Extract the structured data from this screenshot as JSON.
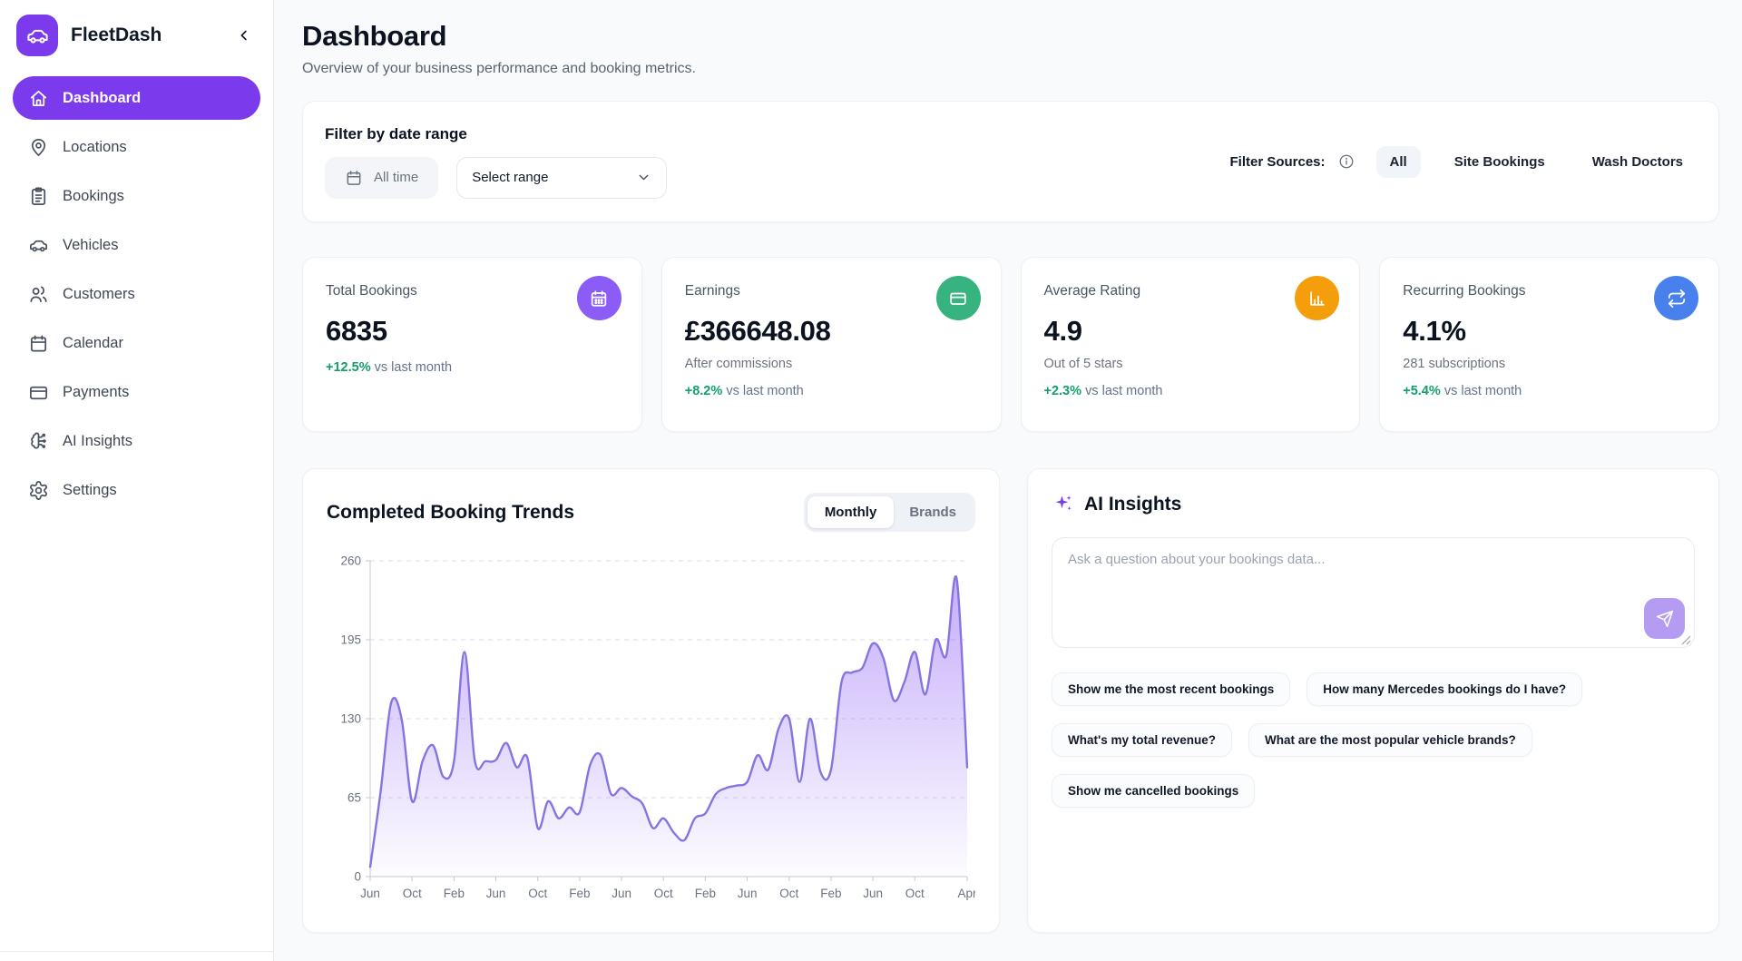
{
  "app": {
    "name": "FleetDash"
  },
  "colors": {
    "accent": "#7c3aed",
    "positive_delta": "#10a06a",
    "chart_line": "#8674e1",
    "stat_icon_colors": [
      "#8b5cf6",
      "#36b37e",
      "#f59e0b",
      "#4880ee"
    ]
  },
  "sidebar": {
    "items": [
      {
        "label": "Dashboard",
        "icon": "home-icon",
        "active": true
      },
      {
        "label": "Locations",
        "icon": "map-pin-icon",
        "active": false
      },
      {
        "label": "Bookings",
        "icon": "clipboard-icon",
        "active": false
      },
      {
        "label": "Vehicles",
        "icon": "car-icon",
        "active": false
      },
      {
        "label": "Customers",
        "icon": "users-icon",
        "active": false
      },
      {
        "label": "Calendar",
        "icon": "calendar-icon",
        "active": false
      },
      {
        "label": "Payments",
        "icon": "credit-card-icon",
        "active": false
      },
      {
        "label": "AI Insights",
        "icon": "brain-icon",
        "active": false
      },
      {
        "label": "Settings",
        "icon": "gear-icon",
        "active": false
      }
    ]
  },
  "header": {
    "title": "Dashboard",
    "subtitle": "Overview of your business performance and booking metrics."
  },
  "filter": {
    "title": "Filter by date range",
    "all_time_label": "All time",
    "select_range_label": "Select range",
    "sources_label": "Filter Sources:",
    "sources": [
      {
        "label": "All",
        "active": true
      },
      {
        "label": "Site Bookings",
        "active": false
      },
      {
        "label": "Wash Doctors",
        "active": false
      }
    ]
  },
  "stats": [
    {
      "label": "Total Bookings",
      "value": "6835",
      "subtext": "",
      "delta": "+12.5%",
      "delta_note": "vs last month",
      "icon": "calendar-check-icon",
      "icon_color": "#8b5cf6"
    },
    {
      "label": "Earnings",
      "value": "£366648.08",
      "subtext": "After commissions",
      "delta": "+8.2%",
      "delta_note": "vs last month",
      "icon": "credit-card-icon",
      "icon_color": "#36b37e"
    },
    {
      "label": "Average Rating",
      "value": "4.9",
      "subtext": "Out of 5 stars",
      "delta": "+2.3%",
      "delta_note": "vs last month",
      "icon": "bar-chart-icon",
      "icon_color": "#f59e0b"
    },
    {
      "label": "Recurring Bookings",
      "value": "4.1%",
      "subtext": "281 subscriptions",
      "delta": "+5.4%",
      "delta_note": "vs last month",
      "icon": "repeat-icon",
      "icon_color": "#4880ee"
    }
  ],
  "trends": {
    "title": "Completed Booking Trends",
    "tabs": [
      {
        "label": "Monthly",
        "active": true
      },
      {
        "label": "Brands",
        "active": false
      }
    ]
  },
  "chart_data": {
    "type": "area",
    "title": "Completed Booking Trends",
    "x_unit": "month",
    "values": [
      8,
      70,
      143,
      130,
      62,
      95,
      108,
      82,
      95,
      185,
      95,
      95,
      96,
      110,
      90,
      98,
      40,
      62,
      48,
      57,
      53,
      92,
      100,
      68,
      73,
      66,
      60,
      40,
      48,
      36,
      30,
      48,
      52,
      68,
      73,
      75,
      78,
      100,
      88,
      122,
      130,
      78,
      130,
      86,
      88,
      160,
      168,
      172,
      192,
      180,
      145,
      160,
      185,
      150,
      195,
      182,
      245,
      90
    ],
    "x_tick_indices": [
      0,
      4,
      8,
      12,
      16,
      20,
      24,
      28,
      32,
      36,
      40,
      44,
      48,
      52,
      57
    ],
    "x_tick_labels": [
      "Jun",
      "Oct",
      "Feb",
      "Jun",
      "Oct",
      "Feb",
      "Jun",
      "Oct",
      "Feb",
      "Jun",
      "Oct",
      "Feb",
      "Jun",
      "Oct",
      "Apr"
    ],
    "y_ticks": [
      0,
      65,
      130,
      195,
      260
    ],
    "ylim": [
      0,
      260
    ],
    "grid": "dashed-horizontal",
    "line_color": "#8674e1",
    "fill_from": "rgba(139,92,246,0.50)",
    "fill_to": "rgba(139,92,246,0.02)"
  },
  "ai": {
    "title": "AI Insights",
    "placeholder": "Ask a question about your bookings data...",
    "suggestions": [
      "Show me the most recent bookings",
      "How many Mercedes bookings do I have?",
      "What's my total revenue?",
      "What are the most popular vehicle brands?",
      "Show me cancelled bookings"
    ]
  }
}
